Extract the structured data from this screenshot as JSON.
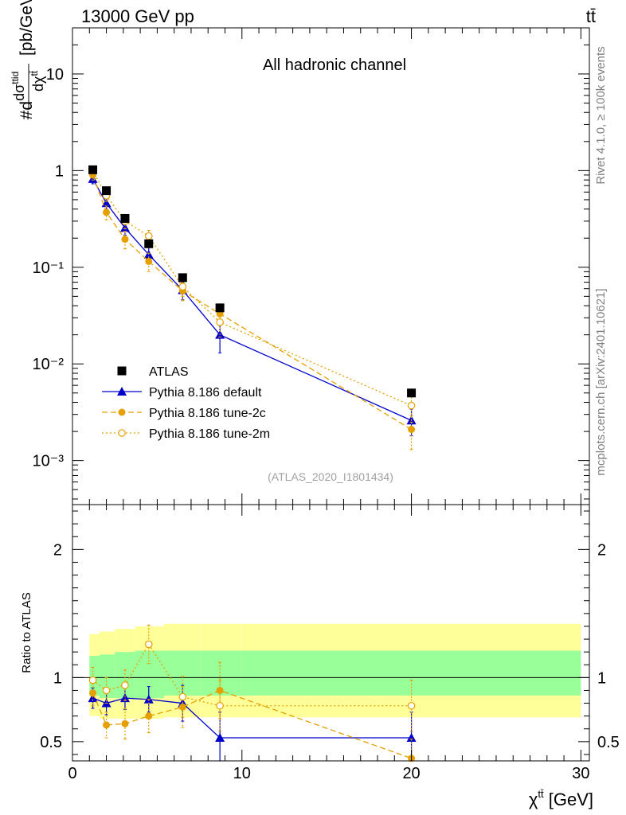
{
  "header": {
    "energy": "13000 GeV pp",
    "process": "tt̄"
  },
  "side_labels": {
    "rivet": "Rivet 4.1.0, ≥ 100k events",
    "site": "mcplots.cern.ch [arXiv:2401.10621]"
  },
  "chart_data": [
    {
      "panel": "main",
      "type": "scatter",
      "title": "All hadronic channel",
      "analysis_tag": "(ATLAS_2020_I1801434)",
      "ylabel": "#d dσ^tid / dχ^tt̄ [pb/GeV]",
      "yscale": "log",
      "xlim": [
        0,
        30.5
      ],
      "ylim": [
        0.00035,
        30
      ],
      "ytick_values": [
        0.001,
        0.01,
        0.1,
        1,
        10
      ],
      "ytick_labels": [
        "10⁻³",
        "10⁻²",
        "10⁻¹",
        "1",
        "10"
      ],
      "legend_position": "bottom-left",
      "series": [
        {
          "name": "ATLAS",
          "marker": "square",
          "color": "#000000",
          "line": "none",
          "x": [
            1.2,
            2.0,
            3.1,
            4.5,
            6.5,
            8.7,
            20.0
          ],
          "y": [
            1.02,
            0.62,
            0.32,
            0.175,
            0.078,
            0.038,
            0.005
          ]
        },
        {
          "name": "Pythia 8.186 default",
          "marker": "triangle",
          "color": "#0000cc",
          "line": "solid",
          "x": [
            1.2,
            2.0,
            3.1,
            4.5,
            6.5,
            8.7,
            20.0
          ],
          "y": [
            0.82,
            0.46,
            0.255,
            0.135,
            0.058,
            0.02,
            0.0026
          ],
          "err": [
            0.09,
            0.06,
            0.04,
            0.025,
            0.012,
            0.007,
            0.0008
          ]
        },
        {
          "name": "Pythia 8.186 tune-2c",
          "marker": "circle",
          "color": "#e5a000",
          "line": "dashed",
          "x": [
            1.2,
            2.0,
            3.1,
            4.5,
            6.5,
            8.7,
            20.0
          ],
          "y": [
            0.9,
            0.37,
            0.195,
            0.115,
            0.057,
            0.033,
            0.0021
          ],
          "err": [
            0.1,
            0.06,
            0.04,
            0.025,
            0.012,
            0.008,
            0.0008
          ]
        },
        {
          "name": "Pythia 8.186 tune-2m",
          "marker": "open-circle",
          "color": "#e5a000",
          "line": "dotted",
          "x": [
            1.2,
            2.0,
            3.1,
            4.5,
            6.5,
            8.7,
            20.0
          ],
          "y": [
            1.0,
            0.55,
            0.3,
            0.21,
            0.063,
            0.027,
            0.0037
          ],
          "err": [
            0.1,
            0.07,
            0.05,
            0.03,
            0.013,
            0.008,
            0.0012
          ]
        }
      ]
    },
    {
      "panel": "ratio",
      "type": "scatter",
      "ylabel": "Ratio to ATLAS",
      "xlabel": "χ^tt̄ [GeV]",
      "xlim": [
        0,
        30.5
      ],
      "ylim": [
        0.35,
        2.35
      ],
      "xtick_values": [
        0,
        10,
        20,
        30
      ],
      "xtick_labels": [
        "0",
        "10",
        "20",
        "30"
      ],
      "ytick_values": [
        0.5,
        1,
        2
      ],
      "ytick_labels": [
        "0.5",
        "1",
        "2"
      ],
      "bands": {
        "bin_edges": [
          1,
          1.6,
          2.5,
          3.7,
          5.4,
          7.6,
          10,
          30
        ],
        "stat": {
          "color": "#99ff99",
          "lo": [
            0.86,
            0.84,
            0.84,
            0.84,
            0.86,
            0.86,
            0.86
          ],
          "hi": [
            1.17,
            1.18,
            1.2,
            1.21,
            1.21,
            1.21,
            1.21
          ]
        },
        "syst": {
          "color": "#ffff99",
          "lo": [
            0.7,
            0.68,
            0.68,
            0.68,
            0.69,
            0.69,
            0.69
          ],
          "hi": [
            1.34,
            1.36,
            1.38,
            1.4,
            1.42,
            1.42,
            1.42
          ]
        }
      },
      "series": [
        {
          "name": "Pythia 8.186 default",
          "marker": "triangle",
          "color": "#0000cc",
          "line": "solid",
          "x": [
            1.2,
            2.0,
            3.1,
            4.5,
            6.5,
            8.7,
            20.0
          ],
          "y": [
            0.84,
            0.8,
            0.84,
            0.83,
            0.8,
            0.53,
            0.53
          ],
          "err": [
            0.08,
            0.09,
            0.09,
            0.1,
            0.14,
            0.2,
            0.2
          ]
        },
        {
          "name": "Pythia 8.186 tune-2c",
          "marker": "circle",
          "color": "#e5a000",
          "line": "dashed",
          "x": [
            1.2,
            2.0,
            3.1,
            4.5,
            6.5,
            8.7,
            20.0
          ],
          "y": [
            0.88,
            0.63,
            0.64,
            0.7,
            0.77,
            0.9,
            0.37
          ],
          "err": [
            0.1,
            0.1,
            0.12,
            0.13,
            0.16,
            0.22,
            0.15
          ]
        },
        {
          "name": "Pythia 8.186 tune-2m",
          "marker": "open-circle",
          "color": "#e5a000",
          "line": "dotted",
          "x": [
            1.2,
            2.0,
            3.1,
            4.5,
            6.5,
            8.7,
            20.0
          ],
          "y": [
            0.98,
            0.9,
            0.94,
            1.26,
            0.85,
            0.78,
            0.78
          ],
          "err": [
            0.1,
            0.1,
            0.12,
            0.15,
            0.16,
            0.2,
            0.2
          ]
        }
      ]
    }
  ]
}
